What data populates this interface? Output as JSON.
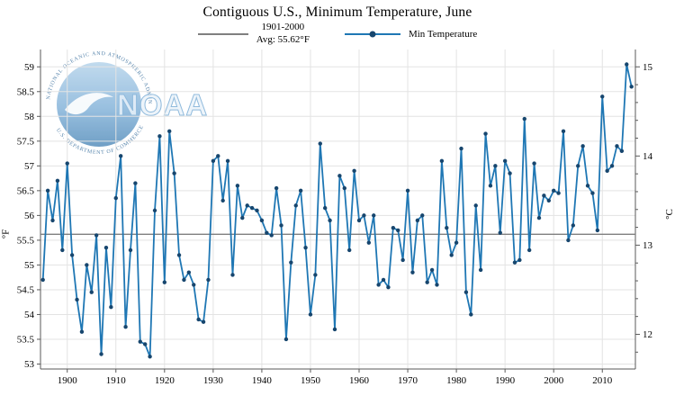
{
  "chart": {
    "title": "Contiguous U.S., Minimum Temperature, June",
    "legend": {
      "avg_line1": "1901-2000",
      "avg_line2": "Avg: 55.62°F",
      "series_label": "Min Temperature"
    },
    "y_left_unit": "°F",
    "y_right_unit": "°C"
  },
  "logo": {
    "wordmark": "NOAA",
    "arc_top": "NATIONAL OCEANIC AND ATMOSPHERIC ADMINISTRATION",
    "arc_bottom": "U.S. DEPARTMENT OF COMMERCE"
  },
  "chart_data": {
    "type": "line",
    "title": "Contiguous U.S., Minimum Temperature, June",
    "x_start": 1895,
    "x_end": 2016,
    "xlim": [
      1894.5,
      2016.8
    ],
    "ylim_f": [
      52.9,
      59.35
    ],
    "x_ticks": [
      1900,
      1910,
      1920,
      1930,
      1940,
      1950,
      1960,
      1970,
      1980,
      1990,
      2000,
      2010
    ],
    "y_ticks_f": [
      53,
      53.5,
      54,
      54.5,
      55,
      55.5,
      56,
      56.5,
      57,
      57.5,
      58,
      58.5,
      59
    ],
    "y_ticks_c": [
      12,
      13,
      14,
      15
    ],
    "ylabel_left": "°F",
    "ylabel_right": "°C",
    "grid": true,
    "legend_position": "top",
    "baseline": {
      "label": "1901-2000 Avg: 55.62°F",
      "value_f": 55.62
    },
    "series": [
      {
        "name": "Min Temperature",
        "values": [
          54.7,
          56.5,
          55.9,
          56.7,
          55.3,
          57.05,
          55.2,
          54.3,
          53.65,
          55.0,
          54.45,
          55.6,
          53.2,
          55.35,
          54.15,
          56.35,
          57.2,
          53.75,
          55.3,
          56.65,
          53.45,
          53.4,
          53.15,
          56.1,
          57.6,
          54.65,
          57.7,
          56.85,
          55.2,
          54.7,
          54.85,
          54.6,
          53.9,
          53.85,
          54.7,
          57.1,
          57.2,
          56.3,
          57.1,
          54.8,
          56.6,
          55.95,
          56.2,
          56.15,
          56.1,
          55.9,
          55.65,
          55.6,
          56.55,
          55.8,
          53.5,
          55.05,
          56.2,
          56.5,
          55.35,
          54.0,
          54.8,
          57.45,
          56.15,
          55.9,
          53.7,
          56.8,
          56.55,
          55.3,
          56.9,
          55.9,
          56.0,
          55.45,
          56.0,
          54.6,
          54.7,
          54.55,
          55.75,
          55.7,
          55.1,
          56.5,
          54.85,
          55.9,
          56.0,
          54.65,
          54.9,
          54.6,
          57.1,
          55.75,
          55.2,
          55.45,
          57.35,
          54.45,
          54.0,
          56.2,
          54.9,
          57.65,
          56.6,
          57.0,
          55.65,
          57.1,
          56.85,
          55.05,
          55.1,
          57.95,
          55.3,
          57.05,
          55.95,
          56.4,
          56.3,
          56.5,
          56.45,
          57.7,
          55.5,
          55.8,
          57.0,
          57.4,
          56.6,
          56.45,
          55.7,
          58.4,
          56.9,
          57.0,
          57.4,
          57.3,
          59.05,
          58.6
        ]
      }
    ],
    "colors": {
      "line": "#1f77b4",
      "point": "#17466e",
      "baseline": "#7f7f7f",
      "grid": "#e3e3e3",
      "axis": "#5a5a5a"
    }
  }
}
